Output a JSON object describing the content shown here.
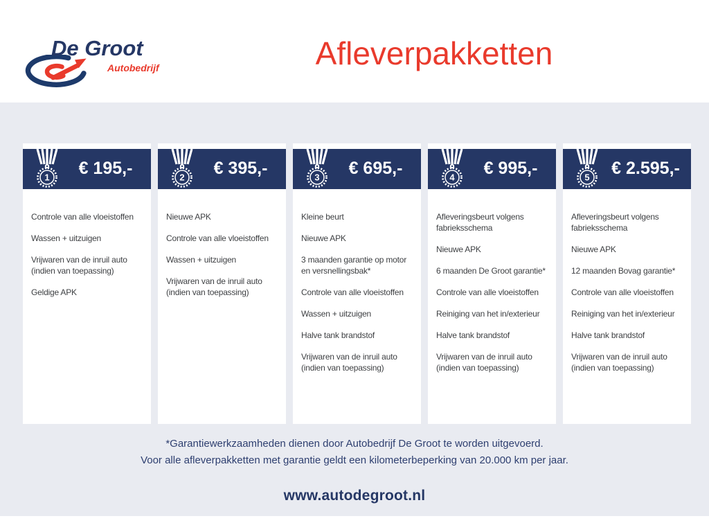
{
  "logo": {
    "name": "De Groot",
    "subtitle": "Autobedrijf"
  },
  "header": {
    "title": "Afleverpakketten"
  },
  "icons": {
    "package_badge": "medal-icon",
    "logo_mark": "degroot-swoosh-icon"
  },
  "colors": {
    "navy": "#253765",
    "red": "#e93a2c",
    "background": "#e9ebf1",
    "body_text": "#3e4043",
    "footnote_text": "#2e3f70",
    "card_background": "#ffffff"
  },
  "packages": [
    {
      "number": "1",
      "price": "€ 195,-",
      "items": [
        "Controle van alle vloeistoffen",
        "Wassen + uitzuigen",
        "Vrijwaren van de inruil auto (indien van toepassing)",
        "Geldige APK"
      ]
    },
    {
      "number": "2",
      "price": "€ 395,-",
      "items": [
        "Nieuwe APK",
        "Controle van alle vloeistoffen",
        "Wassen + uitzuigen",
        "Vrijwaren van de inruil auto (indien van toepassing)"
      ]
    },
    {
      "number": "3",
      "price": "€ 695,-",
      "items": [
        "Kleine beurt",
        "Nieuwe APK",
        "3 maanden garantie op motor en versnellingsbak*",
        "Controle van alle vloeistoffen",
        "Wassen + uitzuigen",
        "Halve tank brandstof",
        "Vrijwaren van de inruil auto (indien van toepassing)"
      ]
    },
    {
      "number": "4",
      "price": "€ 995,-",
      "items": [
        "Afleveringsbeurt volgens fabrieksschema",
        "Nieuwe APK",
        "6 maanden De Groot garantie*",
        "Controle van alle vloeistoffen",
        "Reiniging van het in/exterieur",
        "Halve tank brandstof",
        "Vrijwaren van de inruil auto (indien van toepassing)"
      ]
    },
    {
      "number": "5",
      "price": "€ 2.595,-",
      "items": [
        "Afleveringsbeurt volgens fabrieksschema",
        "Nieuwe APK",
        "12 maanden Bovag garantie*",
        "Controle van alle vloeistoffen",
        "Reiniging van het in/exterieur",
        "Halve tank brandstof",
        "Vrijwaren van de inruil auto (indien van toepassing)"
      ]
    }
  ],
  "footer": {
    "note_line1": "*Garantiewerkzaamheden dienen door Autobedrijf De Groot te worden uitgevoerd.",
    "note_line2": "Voor alle afleverpakketten met garantie geldt een kilometerbeperking van 20.000 km per jaar.",
    "website": "www.autodegroot.nl"
  }
}
